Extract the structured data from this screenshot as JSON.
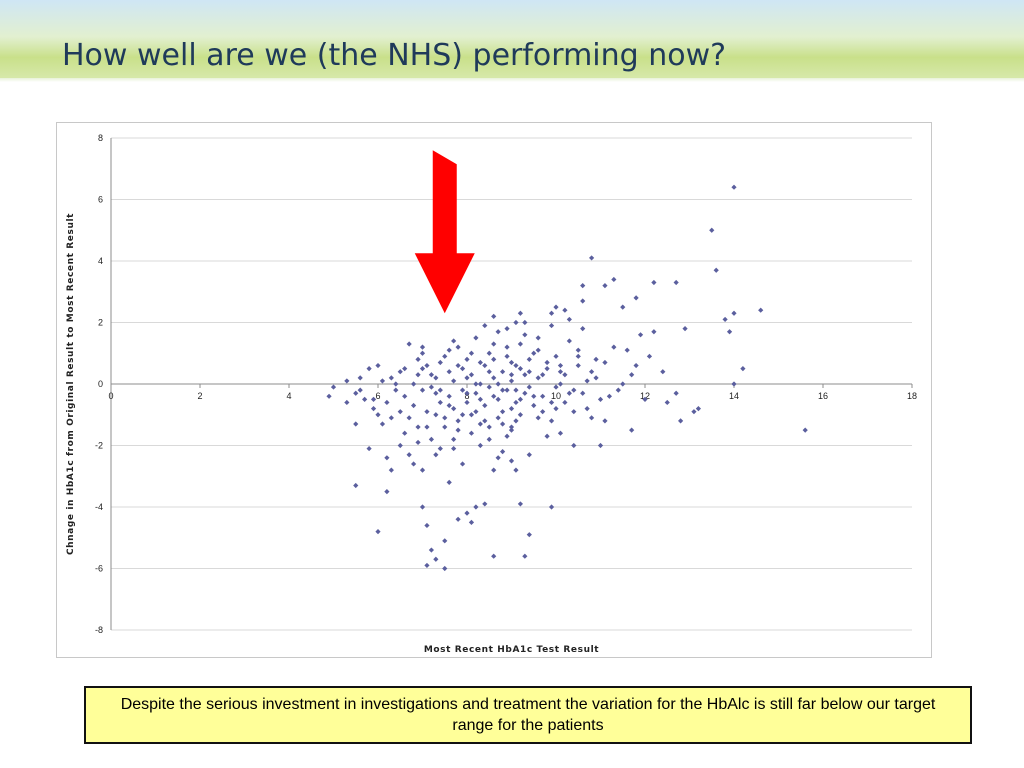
{
  "slide": {
    "title": "How well are we (the NHS) performing now?",
    "note": "Despite the serious investment in investigations and treatment the variation for the HbAlc is still far below our target range for the patients"
  },
  "colors": {
    "marker": "#5b5f9e",
    "arrow": "#ff0000",
    "gridline": "#d9d9d9",
    "note_background": "#ffff99"
  },
  "chart_data": {
    "type": "scatter",
    "title": "",
    "xlabel": "Most Recent HbA1c Test Result",
    "ylabel": "Chnage in HbA1c from Original Result to Most Recent Result",
    "xlim": [
      0,
      18
    ],
    "ylim": [
      -8,
      8
    ],
    "xticks": [
      0,
      2,
      4,
      6,
      8,
      10,
      12,
      14,
      16,
      18
    ],
    "yticks": [
      -8,
      -6,
      -4,
      -2,
      0,
      2,
      4,
      6,
      8
    ],
    "grid": "horizontal",
    "legend": "none",
    "annotation": "red arrow pointing down at x=7.5",
    "arrow_x": 7.5,
    "arrow_from_y": 7.6,
    "arrow_to_y": 2.3,
    "points": [
      [
        4.9,
        -0.4
      ],
      [
        5.0,
        -0.1
      ],
      [
        5.3,
        0.1
      ],
      [
        5.5,
        -0.3
      ],
      [
        5.5,
        -1.3
      ],
      [
        5.6,
        -0.2
      ],
      [
        5.7,
        -0.5
      ],
      [
        5.8,
        0.5
      ],
      [
        5.9,
        -0.5
      ],
      [
        6.0,
        0.6
      ],
      [
        6.0,
        -1.0
      ],
      [
        6.1,
        -1.3
      ],
      [
        6.2,
        -0.6
      ],
      [
        6.3,
        -1.1
      ],
      [
        6.3,
        0.2
      ],
      [
        6.4,
        -0.2
      ],
      [
        6.5,
        -0.9
      ],
      [
        6.5,
        0.4
      ],
      [
        6.6,
        -0.4
      ],
      [
        6.7,
        1.3
      ],
      [
        6.8,
        -0.7
      ],
      [
        6.9,
        0.3
      ],
      [
        6.9,
        -1.4
      ],
      [
        7.0,
        1.0
      ],
      [
        7.0,
        -0.2
      ],
      [
        7.1,
        -0.9
      ],
      [
        7.1,
        0.6
      ],
      [
        7.2,
        -1.8
      ],
      [
        7.3,
        -0.3
      ],
      [
        7.3,
        0.2
      ],
      [
        7.4,
        -0.6
      ],
      [
        7.5,
        0.9
      ],
      [
        7.5,
        -1.1
      ],
      [
        7.6,
        0.4
      ],
      [
        7.6,
        -0.4
      ],
      [
        7.7,
        -0.8
      ],
      [
        7.7,
        0.1
      ],
      [
        7.8,
        1.2
      ],
      [
        7.8,
        -1.5
      ],
      [
        7.9,
        0.5
      ],
      [
        7.9,
        -0.2
      ],
      [
        8.0,
        -0.6
      ],
      [
        8.0,
        0.8
      ],
      [
        8.1,
        -1.0
      ],
      [
        8.1,
        0.3
      ],
      [
        8.2,
        -0.3
      ],
      [
        8.2,
        1.5
      ],
      [
        8.3,
        -1.3
      ],
      [
        8.3,
        0.0
      ],
      [
        8.4,
        0.6
      ],
      [
        8.4,
        -0.7
      ],
      [
        8.5,
        -1.8
      ],
      [
        8.5,
        1.0
      ],
      [
        8.6,
        0.2
      ],
      [
        8.6,
        -0.4
      ],
      [
        8.7,
        -1.1
      ],
      [
        8.7,
        1.7
      ],
      [
        8.8,
        0.4
      ],
      [
        8.8,
        -0.9
      ],
      [
        8.9,
        -0.2
      ],
      [
        8.9,
        0.9
      ],
      [
        9.0,
        -1.4
      ],
      [
        9.0,
        0.1
      ],
      [
        9.1,
        0.6
      ],
      [
        9.1,
        -0.6
      ],
      [
        9.2,
        1.3
      ],
      [
        9.2,
        -1.0
      ],
      [
        9.3,
        0.3
      ],
      [
        9.3,
        -0.3
      ],
      [
        9.4,
        0.8
      ],
      [
        9.5,
        -0.7
      ],
      [
        9.6,
        0.2
      ],
      [
        9.6,
        1.1
      ],
      [
        9.7,
        -0.4
      ],
      [
        9.8,
        0.5
      ],
      [
        9.9,
        -1.2
      ],
      [
        10.0,
        0.9
      ],
      [
        10.0,
        -0.1
      ],
      [
        10.1,
        0.4
      ],
      [
        10.2,
        -0.6
      ],
      [
        10.3,
        1.4
      ],
      [
        10.4,
        -0.9
      ],
      [
        10.5,
        0.6
      ],
      [
        10.6,
        -0.3
      ],
      [
        10.7,
        0.1
      ],
      [
        10.9,
        0.8
      ],
      [
        11.0,
        -0.5
      ],
      [
        6.3,
        -2.8
      ],
      [
        6.2,
        -3.5
      ],
      [
        6.0,
        -4.8
      ],
      [
        6.6,
        -1.6
      ],
      [
        6.7,
        -2.3
      ],
      [
        6.8,
        -2.6
      ],
      [
        7.0,
        -2.8
      ],
      [
        7.1,
        -5.9
      ],
      [
        7.1,
        -4.6
      ],
      [
        7.2,
        -5.4
      ],
      [
        7.3,
        -5.7
      ],
      [
        7.5,
        -6.0
      ],
      [
        7.5,
        -5.1
      ],
      [
        7.4,
        -2.1
      ],
      [
        7.6,
        -3.2
      ],
      [
        7.7,
        -2.1
      ],
      [
        7.9,
        -2.6
      ],
      [
        8.0,
        -4.2
      ],
      [
        8.1,
        -4.5
      ],
      [
        8.2,
        -4.0
      ],
      [
        8.4,
        -3.9
      ],
      [
        8.6,
        -2.8
      ],
      [
        8.6,
        -5.6
      ],
      [
        8.8,
        -2.2
      ],
      [
        9.1,
        -2.8
      ],
      [
        9.3,
        -5.6
      ],
      [
        9.4,
        -4.9
      ],
      [
        9.2,
        -3.9
      ],
      [
        9.9,
        -4.0
      ],
      [
        9.4,
        -2.3
      ],
      [
        9.8,
        -1.7
      ],
      [
        9.0,
        -2.5
      ],
      [
        10.1,
        -1.6
      ],
      [
        8.6,
        2.2
      ],
      [
        9.1,
        2.0
      ],
      [
        9.2,
        2.3
      ],
      [
        9.9,
        2.3
      ],
      [
        10.0,
        2.5
      ],
      [
        10.2,
        2.4
      ],
      [
        10.6,
        1.8
      ],
      [
        10.6,
        2.7
      ],
      [
        10.6,
        3.2
      ],
      [
        10.8,
        4.1
      ],
      [
        11.1,
        3.2
      ],
      [
        11.3,
        3.4
      ],
      [
        11.5,
        2.5
      ],
      [
        11.8,
        2.8
      ],
      [
        12.2,
        3.3
      ],
      [
        12.2,
        1.7
      ],
      [
        12.7,
        3.3
      ],
      [
        12.9,
        1.8
      ],
      [
        13.5,
        5.0
      ],
      [
        13.6,
        3.7
      ],
      [
        13.8,
        2.1
      ],
      [
        14.0,
        6.4
      ],
      [
        14.0,
        2.3
      ],
      [
        14.2,
        0.5
      ],
      [
        14.0,
        0.0
      ],
      [
        14.6,
        2.4
      ],
      [
        13.9,
        1.7
      ],
      [
        13.2,
        -0.8
      ],
      [
        13.1,
        -0.9
      ],
      [
        12.7,
        -0.3
      ],
      [
        12.8,
        -1.2
      ],
      [
        12.4,
        0.4
      ],
      [
        12.0,
        -0.5
      ],
      [
        11.7,
        -1.5
      ],
      [
        11.1,
        -1.2
      ],
      [
        11.0,
        -2.0
      ],
      [
        15.6,
        -1.5
      ],
      [
        11.3,
        1.2
      ],
      [
        11.6,
        1.1
      ],
      [
        11.9,
        1.6
      ],
      [
        10.9,
        0.2
      ],
      [
        11.5,
        0.0
      ],
      [
        11.8,
        0.6
      ],
      [
        5.8,
        -2.1
      ],
      [
        5.5,
        -3.3
      ],
      [
        6.2,
        -2.4
      ],
      [
        7.0,
        -4.0
      ],
      [
        7.8,
        -4.4
      ],
      [
        9.0,
        -1.5
      ],
      [
        10.4,
        -2.0
      ],
      [
        10.8,
        -1.1
      ],
      [
        11.2,
        -0.4
      ],
      [
        6.4,
        0.0
      ],
      [
        6.6,
        0.5
      ],
      [
        6.9,
        0.8
      ],
      [
        7.2,
        -0.1
      ],
      [
        7.4,
        0.7
      ],
      [
        7.6,
        1.1
      ],
      [
        7.8,
        -1.2
      ],
      [
        8.0,
        0.2
      ],
      [
        8.2,
        -0.9
      ],
      [
        8.3,
        0.7
      ],
      [
        8.5,
        -0.1
      ],
      [
        8.7,
        -0.5
      ],
      [
        8.9,
        1.2
      ],
      [
        9.0,
        -0.8
      ],
      [
        9.2,
        0.5
      ],
      [
        9.4,
        -0.1
      ],
      [
        9.5,
        1.0
      ],
      [
        9.7,
        0.3
      ],
      [
        9.9,
        -0.6
      ],
      [
        10.1,
        0.0
      ],
      [
        10.3,
        -0.3
      ],
      [
        10.5,
        1.1
      ],
      [
        10.7,
        -0.8
      ],
      [
        6.8,
        0.0
      ],
      [
        7.0,
        0.5
      ],
      [
        7.2,
        0.3
      ],
      [
        7.4,
        -0.2
      ],
      [
        7.6,
        -0.7
      ],
      [
        7.8,
        0.6
      ],
      [
        8.0,
        -0.3
      ],
      [
        8.1,
        1.0
      ],
      [
        8.3,
        -0.5
      ],
      [
        8.5,
        0.4
      ],
      [
        8.7,
        0.0
      ],
      [
        8.8,
        -1.3
      ],
      [
        9.0,
        0.7
      ],
      [
        9.1,
        -0.2
      ],
      [
        9.3,
        1.6
      ],
      [
        9.5,
        -0.4
      ],
      [
        9.6,
        -1.1
      ],
      [
        9.8,
        0.7
      ],
      [
        10.0,
        -0.8
      ],
      [
        10.2,
        0.3
      ],
      [
        7.3,
        -1.0
      ],
      [
        7.5,
        -1.4
      ],
      [
        7.7,
        -1.8
      ],
      [
        7.9,
        -1.0
      ],
      [
        8.1,
        -1.6
      ],
      [
        8.3,
        -2.0
      ],
      [
        8.5,
        -1.4
      ],
      [
        8.7,
        -2.4
      ],
      [
        8.9,
        -1.7
      ],
      [
        9.1,
        -1.2
      ],
      [
        6.5,
        -2.0
      ],
      [
        6.7,
        -1.1
      ],
      [
        6.9,
        -1.9
      ],
      [
        7.1,
        -1.4
      ],
      [
        7.3,
        -2.3
      ],
      [
        8.4,
        1.9
      ],
      [
        8.6,
        1.3
      ],
      [
        8.9,
        1.8
      ],
      [
        9.3,
        2.0
      ],
      [
        9.6,
        1.5
      ],
      [
        9.9,
        1.9
      ],
      [
        10.3,
        2.1
      ],
      [
        10.5,
        0.9
      ],
      [
        10.8,
        0.4
      ],
      [
        11.1,
        0.7
      ],
      [
        11.4,
        -0.2
      ],
      [
        11.7,
        0.3
      ],
      [
        12.1,
        0.9
      ],
      [
        12.5,
        -0.6
      ],
      [
        5.3,
        -0.6
      ],
      [
        5.6,
        0.2
      ],
      [
        5.9,
        -0.8
      ],
      [
        6.1,
        0.1
      ],
      [
        7.0,
        1.2
      ],
      [
        7.7,
        1.4
      ],
      [
        8.2,
        0.0
      ],
      [
        8.4,
        -1.2
      ],
      [
        8.6,
        0.8
      ],
      [
        8.8,
        -0.2
      ],
      [
        9.0,
        0.3
      ],
      [
        9.2,
        -0.5
      ],
      [
        9.4,
        0.4
      ],
      [
        9.7,
        -0.9
      ],
      [
        10.1,
        0.6
      ],
      [
        10.4,
        -0.2
      ]
    ]
  }
}
